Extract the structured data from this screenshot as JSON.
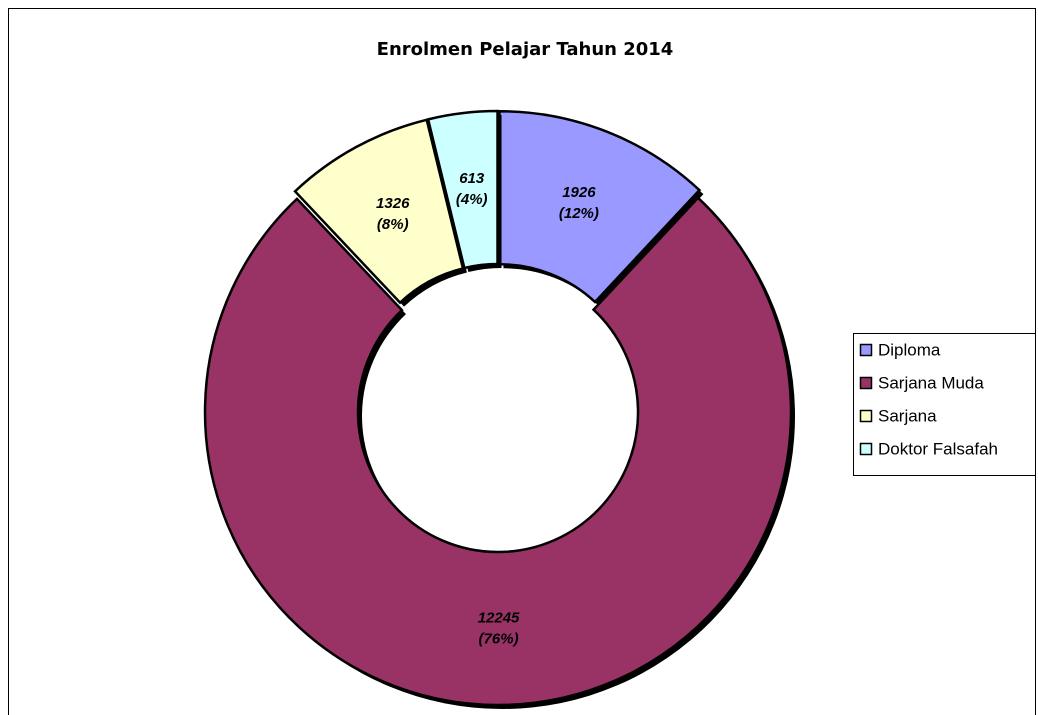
{
  "chart_data": {
    "type": "donut",
    "title": "Enrolmen Pelajar Tahun 2014",
    "categories": [
      "Diploma",
      "Sarjana Muda",
      "Sarjana",
      "Doktor Falsafah"
    ],
    "values": [
      1926,
      12245,
      1326,
      613
    ],
    "percents": [
      12,
      76,
      8,
      4
    ],
    "percent_labels": [
      "(12%)",
      "(76%)",
      "(8%)",
      "(4%)"
    ],
    "colors": [
      "#9999ff",
      "#993366",
      "#ffffcc",
      "#ccffff"
    ],
    "legend": "right"
  }
}
